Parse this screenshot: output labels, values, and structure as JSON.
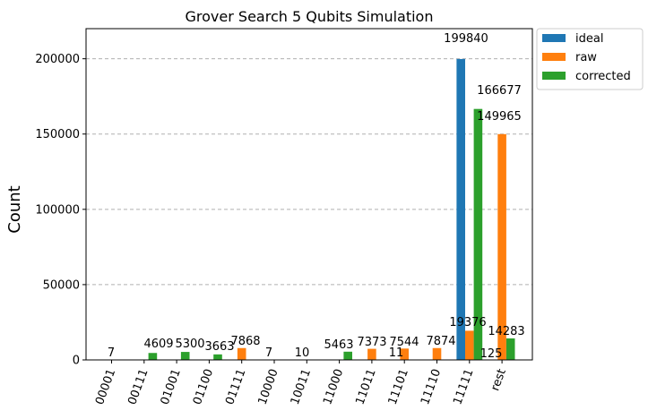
{
  "chart_data": {
    "type": "bar",
    "title": "Grover Search 5 Qubits Simulation",
    "xlabel": "",
    "ylabel": "Count",
    "ylim": [
      0,
      220000
    ],
    "yticks": [
      0,
      50000,
      100000,
      150000,
      200000
    ],
    "grid": "horizontal dashed",
    "legend_position": "outside top-right",
    "categories": [
      "00001",
      "00111",
      "01001",
      "01100",
      "01111",
      "10000",
      "10011",
      "11000",
      "11011",
      "11101",
      "11110",
      "11111",
      "rest"
    ],
    "series": [
      {
        "name": "ideal",
        "color": "#1f77b4",
        "values": [
          null,
          null,
          null,
          null,
          null,
          null,
          null,
          null,
          null,
          null,
          null,
          199840,
          null
        ]
      },
      {
        "name": "raw",
        "color": "#ff7f0e",
        "values": [
          7,
          null,
          null,
          null,
          7868,
          7,
          10,
          null,
          7373,
          7544,
          7874,
          19376,
          149965
        ]
      },
      {
        "name": "corrected",
        "color": "#2ca02c",
        "values": [
          null,
          4609,
          5300,
          3663,
          null,
          null,
          null,
          5463,
          null,
          11,
          null,
          166677,
          14283
        ]
      }
    ],
    "annotations": [
      {
        "category": "00001",
        "text": "7"
      },
      {
        "category": "00111",
        "text": "4609"
      },
      {
        "category": "01001",
        "text": "5300"
      },
      {
        "category": "01100",
        "text": "3663"
      },
      {
        "category": "01111",
        "text": "7868"
      },
      {
        "category": "10000",
        "text": "7"
      },
      {
        "category": "10011",
        "text": "10"
      },
      {
        "category": "11000",
        "text": "5463"
      },
      {
        "category": "11011",
        "text": "7373"
      },
      {
        "category": "11101",
        "text": "11"
      },
      {
        "category": "11101",
        "text": "7544"
      },
      {
        "category": "11110",
        "text": "7874"
      },
      {
        "category": "11111",
        "text": "199840"
      },
      {
        "category": "11111",
        "text": "166677"
      },
      {
        "category": "11111",
        "text": "19376"
      },
      {
        "category": "rest",
        "text": "149965"
      },
      {
        "category": "rest",
        "text": "125"
      },
      {
        "category": "rest",
        "text": "14283"
      }
    ]
  }
}
